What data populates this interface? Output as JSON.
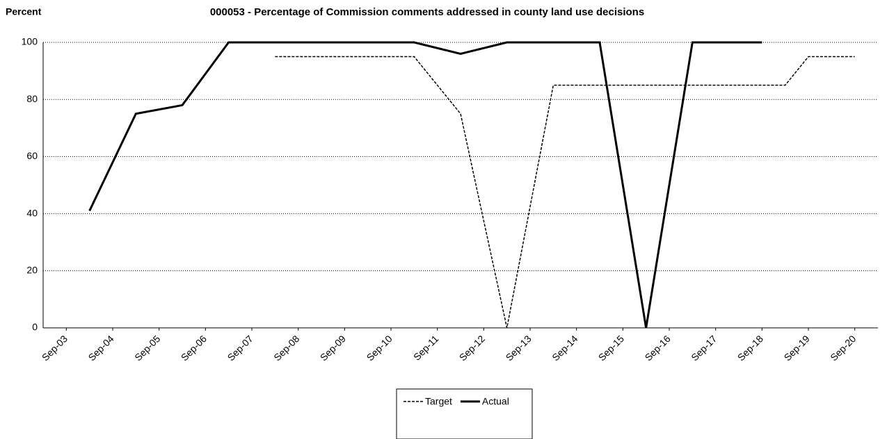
{
  "chart_data": {
    "type": "line",
    "title": "000053 - Percentage of Commission comments addressed in county land use decisions",
    "y_label": "Percent",
    "xlim": [
      2002.5,
      2020.5
    ],
    "xticks": [
      {
        "value": 2003,
        "label": "Sep-03"
      },
      {
        "value": 2004,
        "label": "Sep-04"
      },
      {
        "value": 2005,
        "label": "Sep-05"
      },
      {
        "value": 2006,
        "label": "Sep-06"
      },
      {
        "value": 2007,
        "label": "Sep-07"
      },
      {
        "value": 2008,
        "label": "Sep-08"
      },
      {
        "value": 2009,
        "label": "Sep-09"
      },
      {
        "value": 2010,
        "label": "Sep-10"
      },
      {
        "value": 2011,
        "label": "Sep-11"
      },
      {
        "value": 2012,
        "label": "Sep-12"
      },
      {
        "value": 2013,
        "label": "Sep-13"
      },
      {
        "value": 2014,
        "label": "Sep-14"
      },
      {
        "value": 2015,
        "label": "Sep-15"
      },
      {
        "value": 2016,
        "label": "Sep-16"
      },
      {
        "value": 2017,
        "label": "Sep-17"
      },
      {
        "value": 2018,
        "label": "Sep-18"
      },
      {
        "value": 2019,
        "label": "Sep-19"
      },
      {
        "value": 2020,
        "label": "Sep-20"
      }
    ],
    "ylim": [
      0,
      100
    ],
    "yticks": [
      0,
      20,
      40,
      60,
      80,
      100
    ],
    "grid": true,
    "legend": "bottom",
    "series": [
      {
        "name": "Target",
        "color": "#000000",
        "dash": true,
        "x": [
          2007.5,
          2010.5,
          2011.5,
          2012.5,
          2013.5,
          2018.5,
          2019,
          2020
        ],
        "values": [
          95,
          95,
          75,
          0,
          85,
          85,
          95,
          95
        ]
      },
      {
        "name": "Actual",
        "color": "#000000",
        "dash": false,
        "x": [
          2003.5,
          2004.5,
          2005.5,
          2006.5,
          2007.5,
          2008.5,
          2009.5,
          2010.5,
          2011.5,
          2012.5,
          2013.5,
          2014.5,
          2015.5,
          2016.5,
          2017.5,
          2018
        ],
        "values": [
          41,
          75,
          78,
          100,
          100,
          100,
          100,
          100,
          96,
          100,
          100,
          100,
          0,
          100,
          100,
          100
        ]
      }
    ]
  }
}
